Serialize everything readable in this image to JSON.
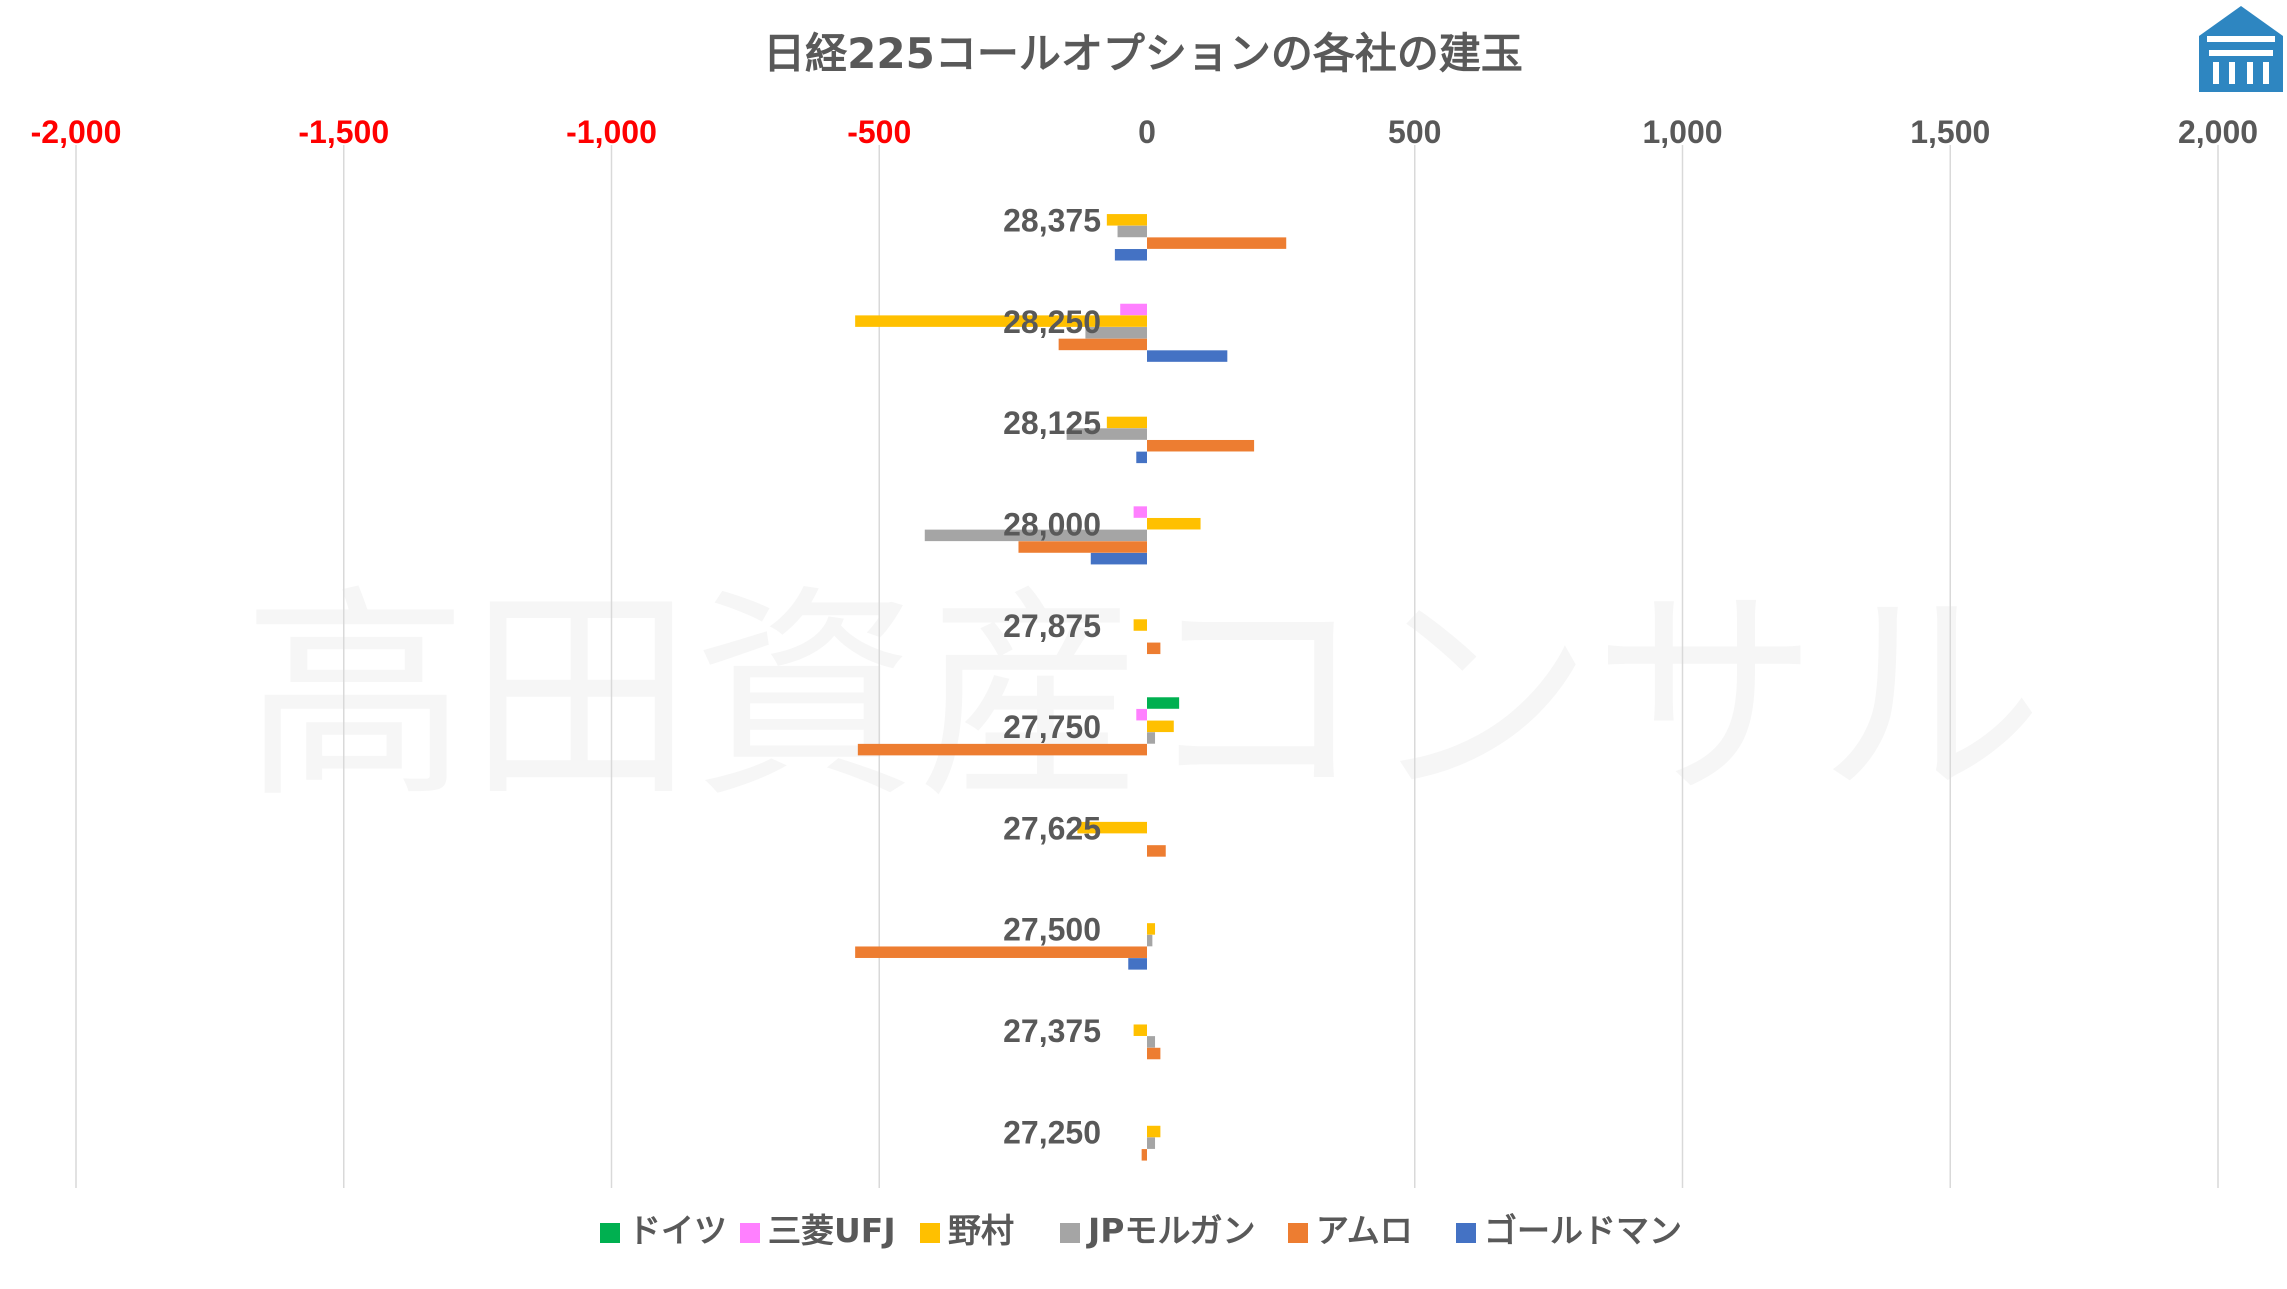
{
  "chart_data": {
    "type": "bar",
    "orientation": "horizontal",
    "title": "日経225コールオプションの各社の建玉",
    "watermark": "高田資産コンサル",
    "xlim": [
      -2000,
      2000
    ],
    "xticks": [
      -2000,
      -1500,
      -1000,
      -500,
      0,
      500,
      1000,
      1500,
      2000
    ],
    "xtick_labels": [
      "-2,000",
      "-1,500",
      "-1,000",
      "-500",
      "0",
      "500",
      "1,000",
      "1,500",
      "2,000"
    ],
    "negative_tick_color": "#ff0000",
    "positive_tick_color": "#595959",
    "grid": true,
    "legend_position": "bottom",
    "categories": [
      "28,375",
      "28,250",
      "28,125",
      "28,000",
      "27,875",
      "27,750",
      "27,625",
      "27,500",
      "27,375",
      "27,250"
    ],
    "series": [
      {
        "name": "ドイツ",
        "color": "#00b050",
        "values": [
          0,
          0,
          0,
          0,
          0,
          60,
          0,
          0,
          0,
          0
        ]
      },
      {
        "name": "三菱UFJ",
        "color": "#ff80ff",
        "values": [
          0,
          -50,
          0,
          -25,
          0,
          -20,
          0,
          0,
          0,
          0
        ]
      },
      {
        "name": "野村",
        "color": "#ffc000",
        "values": [
          -75,
          -545,
          -75,
          100,
          -25,
          50,
          -130,
          15,
          -25,
          25
        ]
      },
      {
        "name": "JPモルガン",
        "color": "#a5a5a5",
        "values": [
          -55,
          -115,
          -150,
          -415,
          0,
          15,
          0,
          10,
          15,
          15
        ]
      },
      {
        "name": "アムロ",
        "color": "#ed7d31",
        "values": [
          260,
          -165,
          200,
          -240,
          25,
          -540,
          35,
          -545,
          25,
          -10
        ]
      },
      {
        "name": "ゴールドマン",
        "color": "#4472c4",
        "values": [
          -60,
          150,
          -20,
          -105,
          0,
          0,
          0,
          -35,
          0,
          0
        ]
      }
    ]
  }
}
